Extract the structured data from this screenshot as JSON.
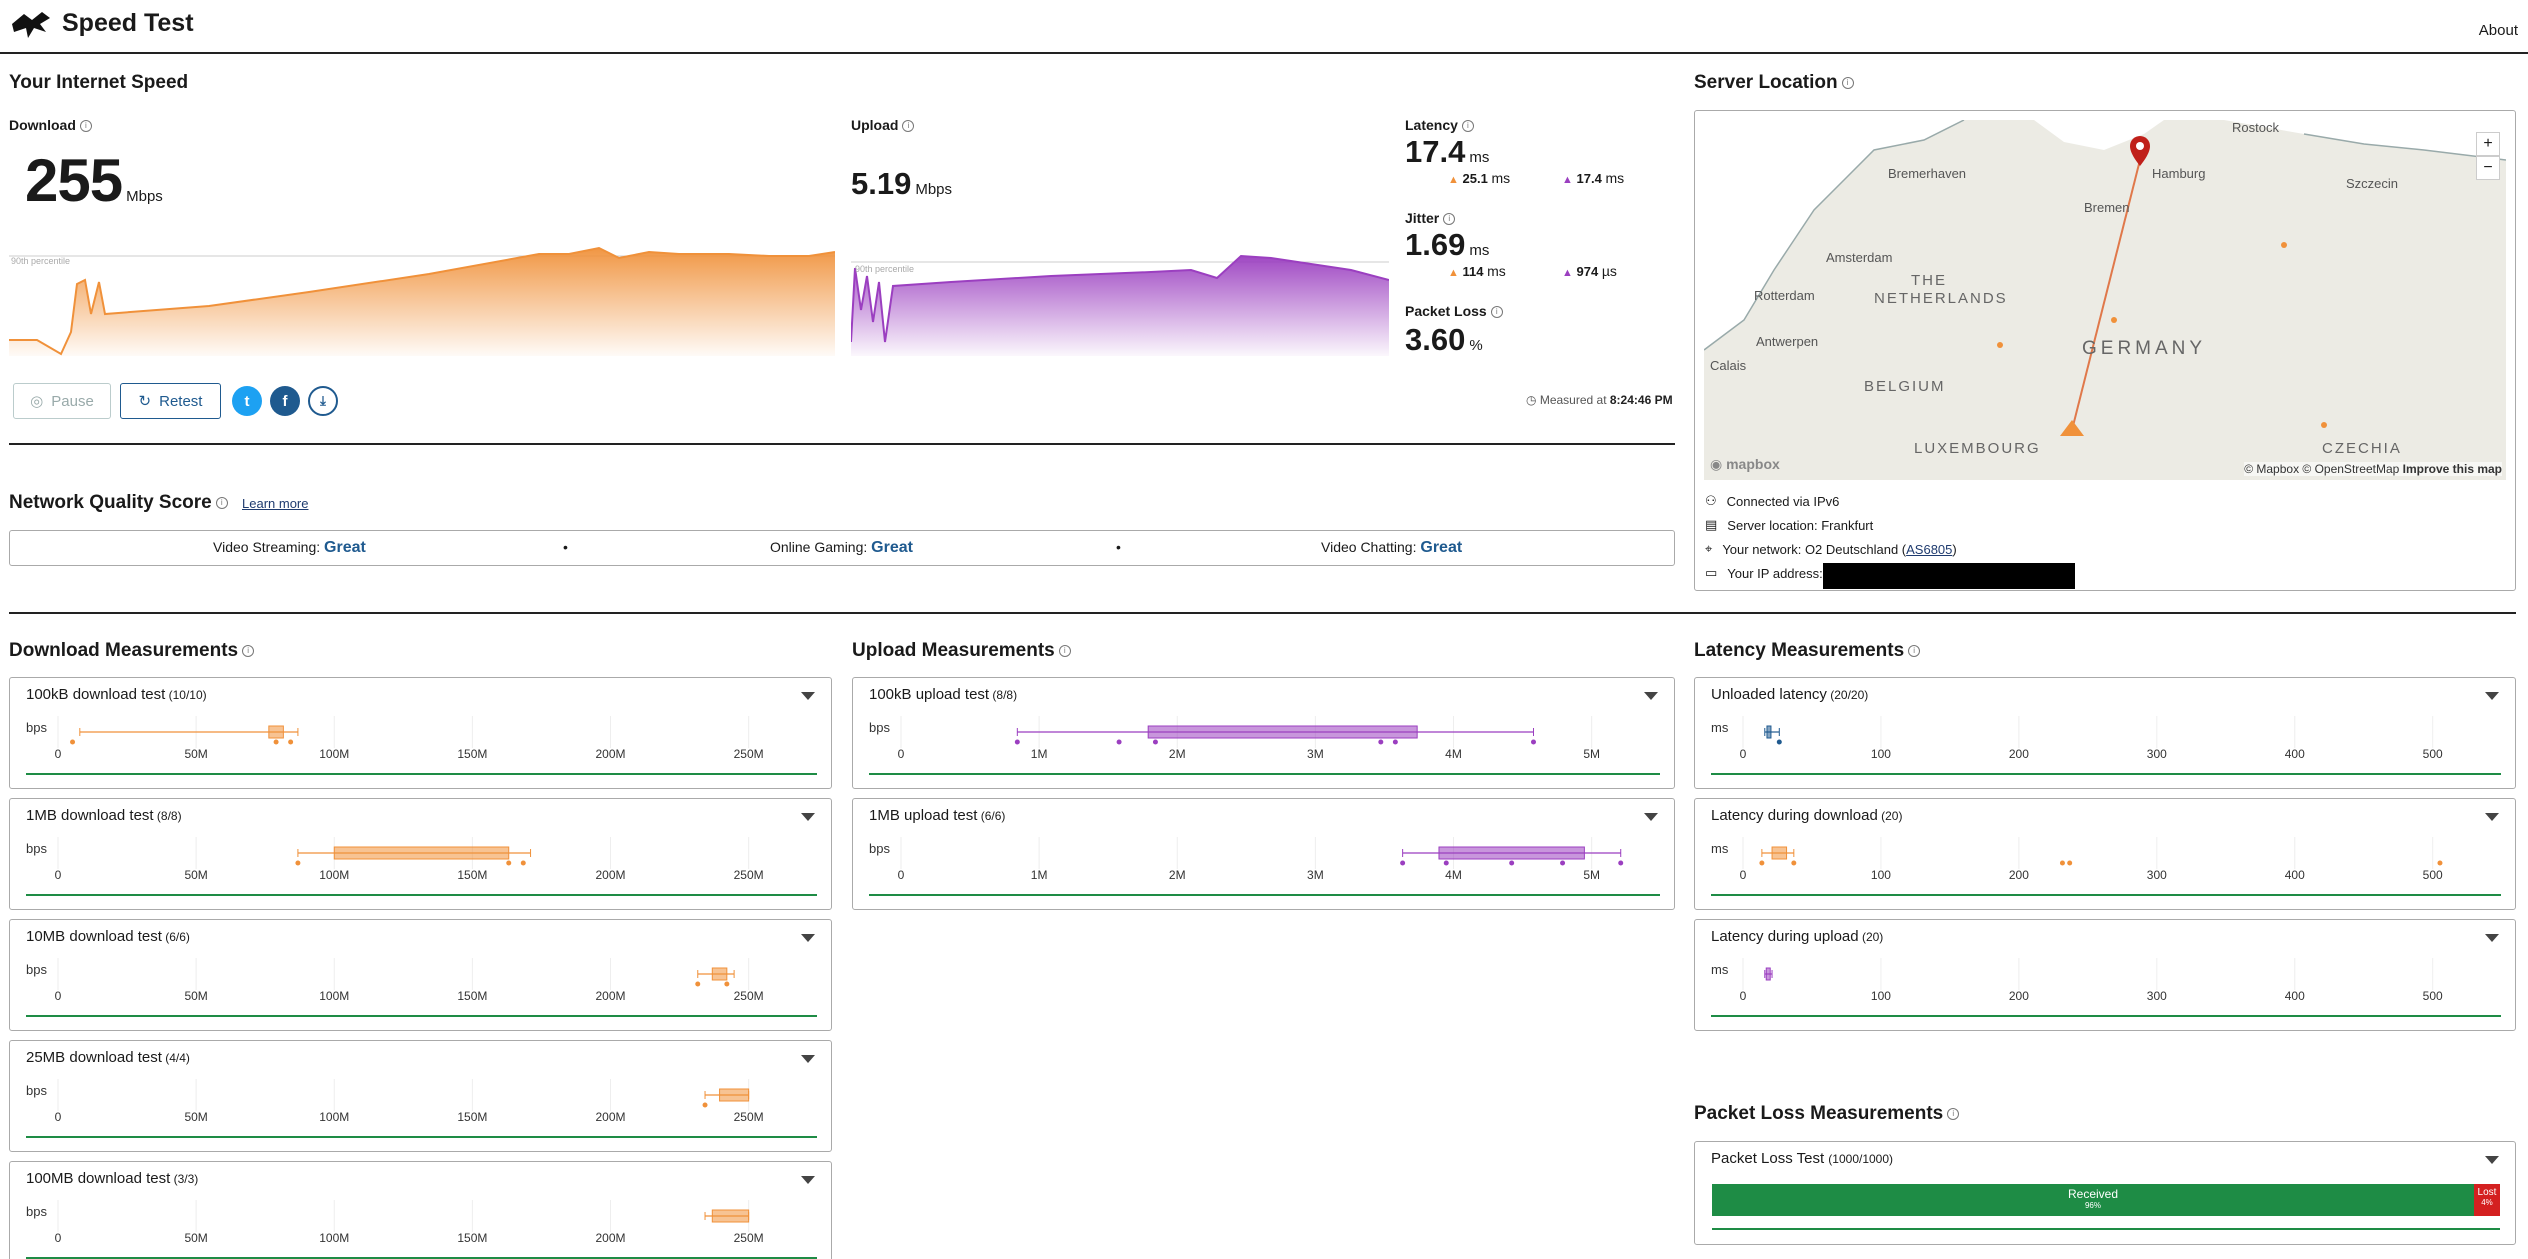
{
  "header": {
    "title": "Speed Test",
    "about": "About"
  },
  "speed": {
    "section_title": "Your Internet Speed",
    "download": {
      "label": "Download",
      "value": "255",
      "unit": "Mbps",
      "percentile": "90th percentile"
    },
    "upload": {
      "label": "Upload",
      "value": "5.19",
      "unit": "Mbps",
      "percentile": "90th percentile"
    },
    "latency": {
      "label": "Latency",
      "value": "17.4",
      "unit": "ms",
      "down": "25.1",
      "down_unit": "ms",
      "up": "17.4",
      "up_unit": "ms"
    },
    "jitter": {
      "label": "Jitter",
      "value": "1.69",
      "unit": "ms",
      "down": "114",
      "down_unit": "ms",
      "up": "974",
      "up_unit": "µs"
    },
    "packet_loss": {
      "label": "Packet Loss",
      "value": "3.60",
      "unit": "%"
    },
    "buttons": {
      "pause": "Pause",
      "retest": "Retest"
    },
    "measured_prefix": "Measured at",
    "measured_time": "8:24:46 PM"
  },
  "server": {
    "title": "Server Location",
    "map": {
      "cities": [
        "Rostock",
        "Bremerhaven",
        "Hamburg",
        "Szczecin",
        "Bremen",
        "Amsterdam",
        "Rotterdam",
        "Antwerpen",
        "Calais"
      ],
      "countries": [
        "THE NETHERLANDS",
        "BELGIUM",
        "GERMANY",
        "LUXEMBOURG",
        "CZECHIA"
      ],
      "zoom_in": "+",
      "zoom_out": "−",
      "brand": "mapbox",
      "attribution": "© Mapbox © OpenStreetMap",
      "improve": "Improve this map"
    },
    "info": {
      "connected": "Connected via IPv6",
      "location": "Server location: Frankfurt",
      "network_prefix": "Your network: O2 Deutschland (",
      "network_as": "AS6805",
      "network_suffix": ")",
      "ip_label": "Your IP address:"
    }
  },
  "nqs": {
    "title": "Network Quality Score",
    "learn_more": "Learn more",
    "items": [
      {
        "label": "Video Streaming:",
        "value": "Great"
      },
      {
        "label": "Online Gaming:",
        "value": "Great"
      },
      {
        "label": "Video Chatting:",
        "value": "Great"
      }
    ],
    "sep": "•"
  },
  "download_measurements": {
    "title": "Download Measurements",
    "unit": "bps",
    "ticks": [
      "0",
      "50M",
      "100M",
      "150M",
      "200M",
      "250M"
    ],
    "tests": [
      {
        "name": "100kB download test",
        "count": "(10/10)"
      },
      {
        "name": "1MB download test",
        "count": "(8/8)"
      },
      {
        "name": "10MB download test",
        "count": "(6/6)"
      },
      {
        "name": "25MB download test",
        "count": "(4/4)"
      },
      {
        "name": "100MB download test",
        "count": "(3/3)"
      }
    ]
  },
  "upload_measurements": {
    "title": "Upload Measurements",
    "unit": "bps",
    "ticks": [
      "0",
      "1M",
      "2M",
      "3M",
      "4M",
      "5M"
    ],
    "tests": [
      {
        "name": "100kB upload test",
        "count": "(8/8)"
      },
      {
        "name": "1MB upload test",
        "count": "(6/6)"
      }
    ]
  },
  "latency_measurements": {
    "title": "Latency Measurements",
    "unit": "ms",
    "ticks": [
      "0",
      "100",
      "200",
      "300",
      "400",
      "500"
    ],
    "tests": [
      {
        "name": "Unloaded latency",
        "count": "(20/20)"
      },
      {
        "name": "Latency during download",
        "count": "(20)"
      },
      {
        "name": "Latency during upload",
        "count": "(20)"
      }
    ]
  },
  "packet_loss_measurements": {
    "title": "Packet Loss Measurements",
    "test_name": "Packet Loss Test",
    "test_count": "(1000/1000)",
    "received_label": "Received",
    "received_pct": "96%",
    "lost_label": "Lost",
    "lost_pct": "4%"
  },
  "colors": {
    "download": "#f0913a",
    "upload": "#9b3fc0",
    "brand_blue": "#1f5a8f",
    "green": "#1e8c45",
    "red": "#d42020"
  }
}
